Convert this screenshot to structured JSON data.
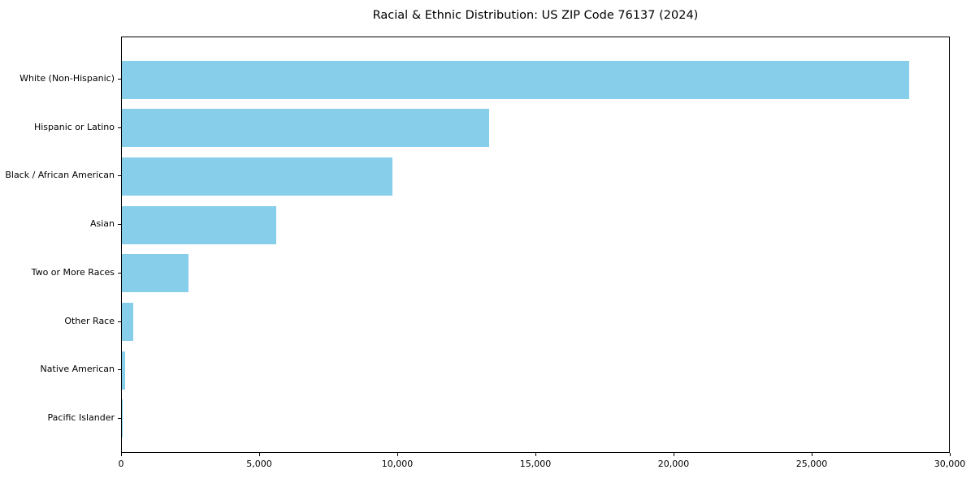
{
  "chart_data": {
    "type": "bar",
    "orientation": "horizontal",
    "title": "Racial & Ethnic Distribution: US ZIP Code 76137 (2024)",
    "categories": [
      "White (Non-Hispanic)",
      "Hispanic or Latino",
      "Black / African American",
      "Asian",
      "Two or More Races",
      "Other Race",
      "Native American",
      "Pacific Islander"
    ],
    "values": [
      28500,
      13300,
      9800,
      5600,
      2400,
      410,
      120,
      25
    ],
    "xlabel": "",
    "ylabel": "",
    "xlim": [
      0,
      30000
    ],
    "xticks": {
      "values": [
        0,
        5000,
        10000,
        15000,
        20000,
        25000,
        30000
      ],
      "labels": [
        "0",
        "5,000",
        "10,000",
        "15,000",
        "20,000",
        "25,000",
        "30,000"
      ]
    },
    "bar_color": "#87CEEB",
    "background_color": "#FFFFFF",
    "spine_color": "#000000",
    "text_color": "#000000",
    "grid": false,
    "legend": null
  }
}
